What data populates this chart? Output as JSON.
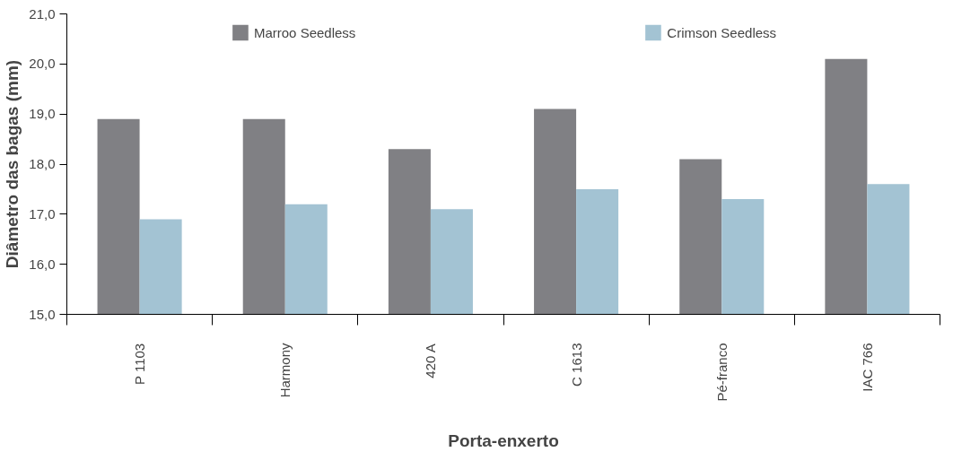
{
  "chart_data": {
    "type": "bar",
    "xlabel": "Porta-enxerto",
    "ylabel": "Diâmetro das bagas (mm)",
    "categories": [
      "P 1103",
      "Harmony",
      "420 A",
      "C 1613",
      "Pé-franco",
      "IAC 766"
    ],
    "series": [
      {
        "name": "Marroo Seedless",
        "color": "#808084",
        "values": [
          18.9,
          18.9,
          18.3,
          19.1,
          18.1,
          20.1
        ]
      },
      {
        "name": "Crimson Seedless",
        "color": "#a3c3d3",
        "values": [
          16.9,
          17.2,
          17.1,
          17.5,
          17.3,
          17.6
        ]
      }
    ],
    "ylim": [
      15,
      21
    ],
    "yticks": [
      {
        "value": 15,
        "label": "15,0"
      },
      {
        "value": 16,
        "label": "16,0"
      },
      {
        "value": 17,
        "label": "17,0"
      },
      {
        "value": 18,
        "label": "18,0"
      },
      {
        "value": 19,
        "label": "19,0"
      },
      {
        "value": 20,
        "label": "20,0"
      },
      {
        "value": 21,
        "label": "21,0"
      }
    ],
    "grid": false,
    "legend": "top"
  }
}
